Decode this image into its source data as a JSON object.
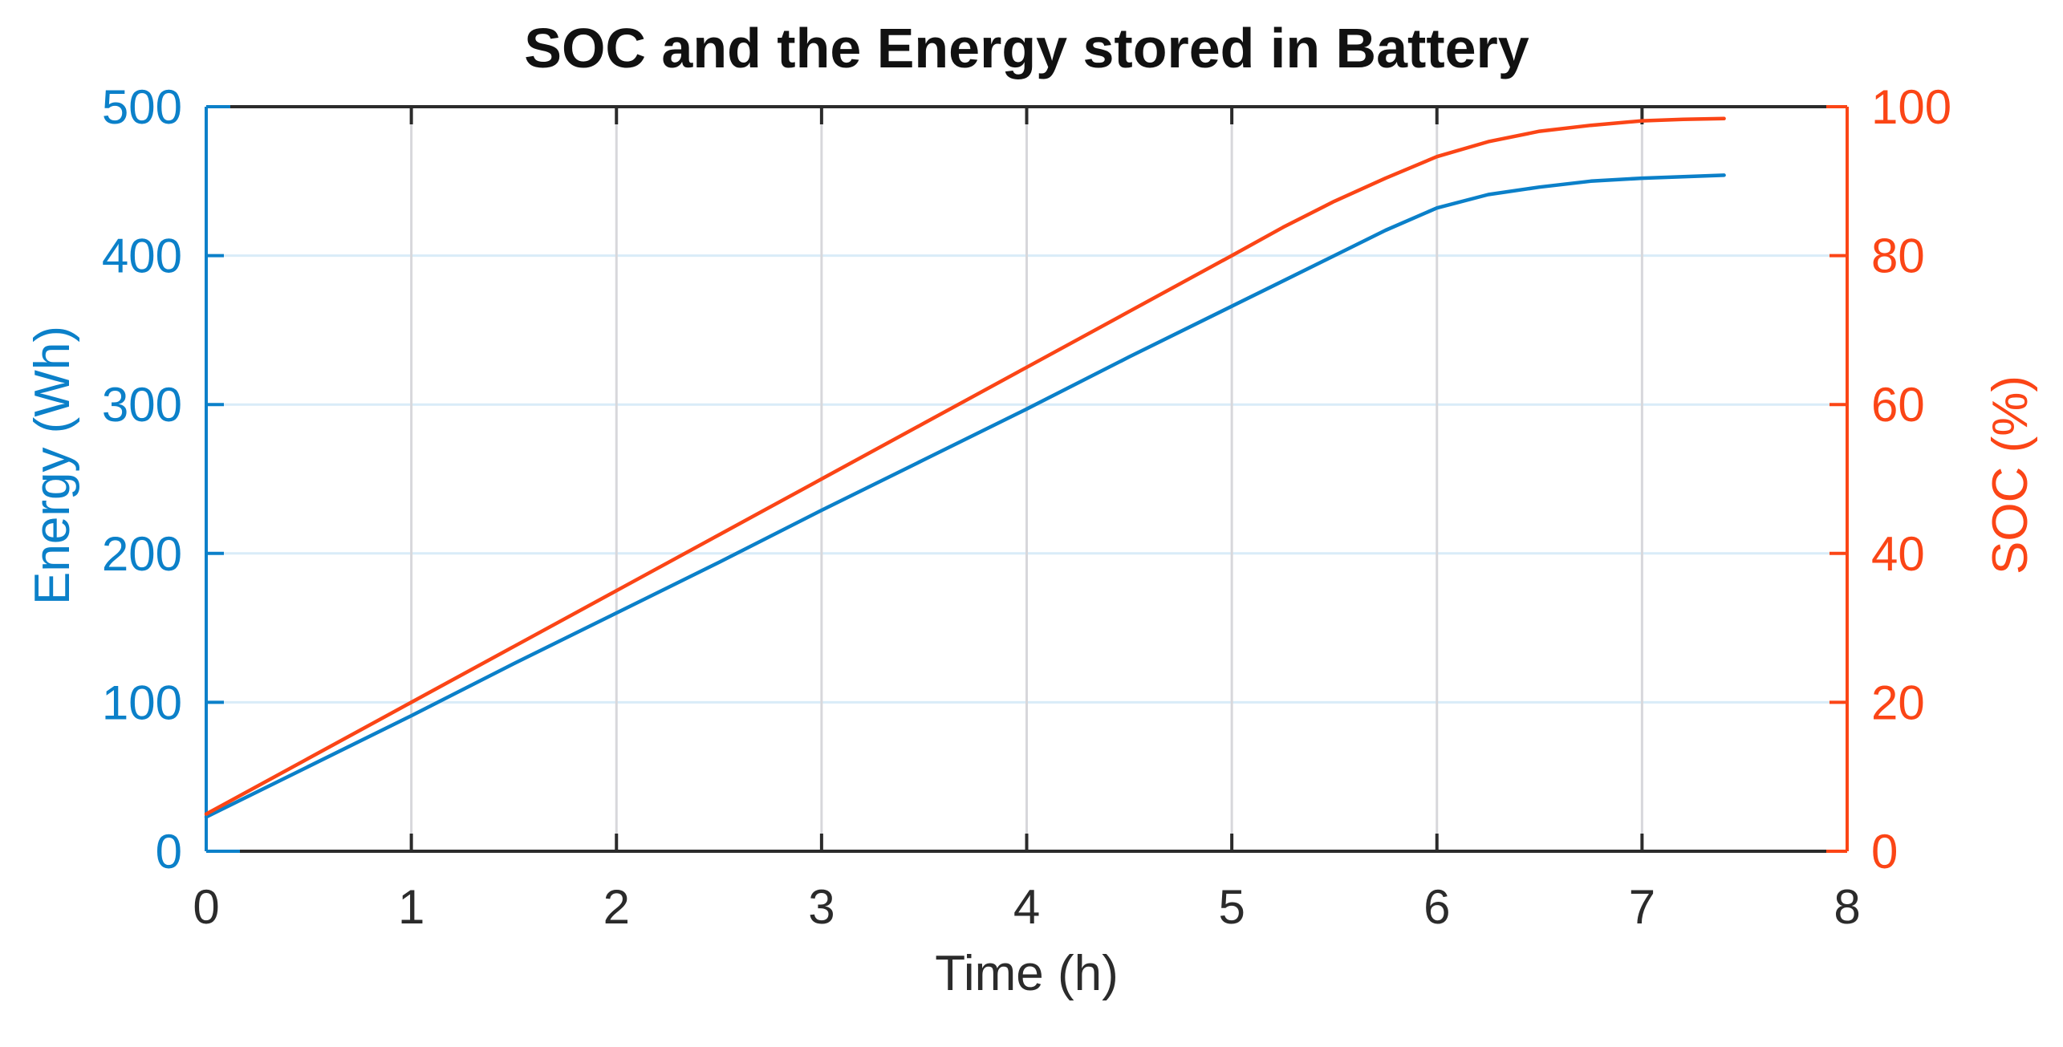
{
  "title": "SOC and the Energy stored in Battery",
  "colors": {
    "energy_axis": "#0b80c9",
    "soc_axis": "#fb4516",
    "dark_axis": "#2b2b2b",
    "title_text": "#111111",
    "grid_vertical": "#d7d7db",
    "grid_horizontal": "#d9ecf8",
    "background": "#ffffff"
  },
  "chart_data": {
    "type": "line",
    "title": "SOC and the Energy stored in Battery",
    "xlabel": "Time (h)",
    "ylabel_left": "Energy (Wh)",
    "ylabel_right": "SOC (%)",
    "xlim": [
      0,
      8
    ],
    "ylim_left": [
      0,
      500
    ],
    "ylim_right": [
      0,
      100
    ],
    "xticks": [
      0,
      1,
      2,
      3,
      4,
      5,
      6,
      7,
      8
    ],
    "yticks_left": [
      0,
      100,
      200,
      300,
      400,
      500
    ],
    "yticks_right": [
      0,
      20,
      40,
      60,
      80,
      100
    ],
    "grid": true,
    "legend": "none",
    "x": [
      0,
      0.5,
      1,
      1.5,
      2,
      2.5,
      3,
      3.5,
      4,
      4.5,
      5,
      5.25,
      5.5,
      5.75,
      6,
      6.25,
      6.5,
      6.75,
      7,
      7.2,
      7.4
    ],
    "series": [
      {
        "name": "Energy (Wh)",
        "axis": "left",
        "color": "#0b80c9",
        "values": [
          23,
          57,
          91,
          126,
          160,
          194,
          229,
          263,
          297,
          332,
          366,
          383,
          400,
          417,
          432,
          441,
          446,
          450,
          452,
          453,
          454
        ]
      },
      {
        "name": "SOC (%)",
        "axis": "right",
        "color": "#fb4516",
        "values": [
          5,
          12.5,
          20,
          27.5,
          35,
          42.5,
          50,
          57.5,
          65,
          72.5,
          80,
          83.8,
          87.3,
          90.4,
          93.3,
          95.3,
          96.7,
          97.5,
          98.1,
          98.3,
          98.4
        ]
      }
    ]
  }
}
